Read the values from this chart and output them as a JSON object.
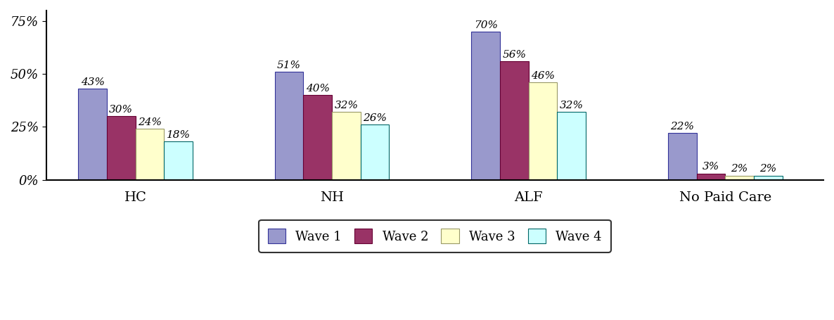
{
  "categories": [
    "HC",
    "NH",
    "ALF",
    "No Paid Care"
  ],
  "series": {
    "Wave 1": [
      43,
      51,
      70,
      22
    ],
    "Wave 2": [
      30,
      40,
      56,
      3
    ],
    "Wave 3": [
      24,
      32,
      46,
      2
    ],
    "Wave 4": [
      18,
      26,
      32,
      2
    ]
  },
  "colors": {
    "Wave 1": "#9999CC",
    "Wave 2": "#993366",
    "Wave 3": "#FFFFCC",
    "Wave 4": "#CCFFFF"
  },
  "edge_colors": {
    "Wave 1": "#333399",
    "Wave 2": "#660033",
    "Wave 3": "#999966",
    "Wave 4": "#006666"
  },
  "ylim": [
    0,
    80
  ],
  "yticks": [
    0,
    25,
    50,
    75
  ],
  "ytick_labels": [
    "0%",
    "25%",
    "50%",
    "75%"
  ],
  "bar_width": 0.16,
  "legend_labels": [
    "Wave 1",
    "Wave 2",
    "Wave 3",
    "Wave 4"
  ],
  "annotation_fontsize": 11,
  "tick_fontsize": 13,
  "cat_fontsize": 14,
  "background_color": "#ffffff",
  "figure_width": 11.86,
  "figure_height": 4.55
}
